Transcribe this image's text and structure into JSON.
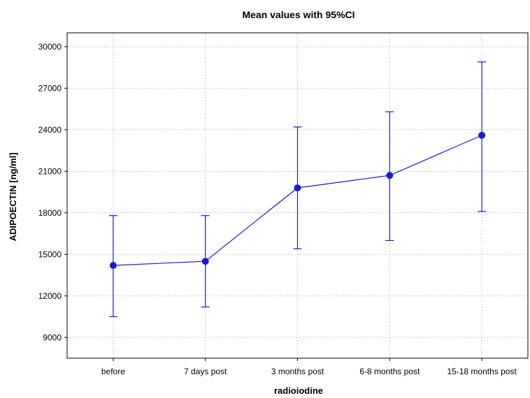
{
  "chart_data": {
    "type": "line",
    "title": "Mean values with 95%CI",
    "xlabel": "radioiodine",
    "ylabel": "ADIPOECTIN [ng/ml]",
    "categories": [
      "before",
      "7 days post",
      "3 months post",
      "6-8 months post",
      "15-18 months post"
    ],
    "series": [
      {
        "values": [
          14200,
          14500,
          19800,
          20700,
          23600
        ],
        "ci_lower": [
          10500,
          11200,
          15400,
          16000,
          18100
        ],
        "ci_upper": [
          17800,
          17800,
          24200,
          25300,
          28900
        ],
        "color": "#1a1ad6"
      }
    ],
    "ylim": [
      7500,
      31000
    ],
    "yticks": [
      9000,
      12000,
      15000,
      18000,
      21000,
      24000,
      27000,
      30000
    ],
    "grid": true,
    "error_bars": "95% CI"
  }
}
